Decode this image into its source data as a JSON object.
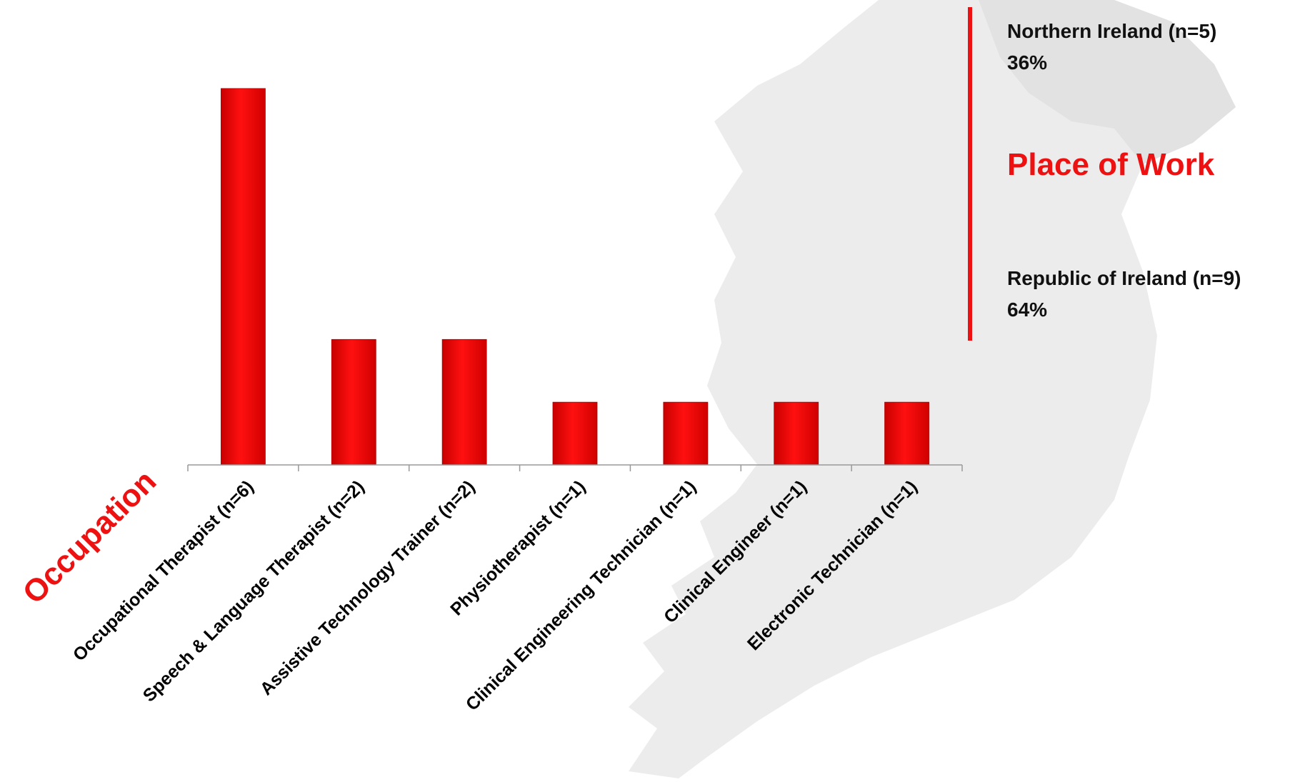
{
  "colors": {
    "bar": "#f00000",
    "accent": "#ee1111",
    "axis": "#999999",
    "map": "#ececec"
  },
  "chart_data": {
    "type": "bar",
    "categories": [
      "Occupational Therapist (n=6)",
      "Speech & Language Therapist (n=2)",
      "Assistive Technology Trainer (n=2)",
      "Physiotherapist (n=1)",
      "Clinical Engineering Technician (n=1)",
      "Clinical Engineer (n=1)",
      "Electronic Technician (n=1)"
    ],
    "values": [
      6,
      2,
      2,
      1,
      1,
      1,
      1
    ],
    "xlabel": "Occupation",
    "ylim": [
      0,
      6.5
    ],
    "grid": false,
    "legend": "none"
  },
  "place_of_work": {
    "title": "Place of Work",
    "entries": [
      {
        "label": "Northern Ireland (n=5)",
        "percent": "36%"
      },
      {
        "label": "Republic of Ireland (n=9)",
        "percent": "64%"
      }
    ]
  }
}
